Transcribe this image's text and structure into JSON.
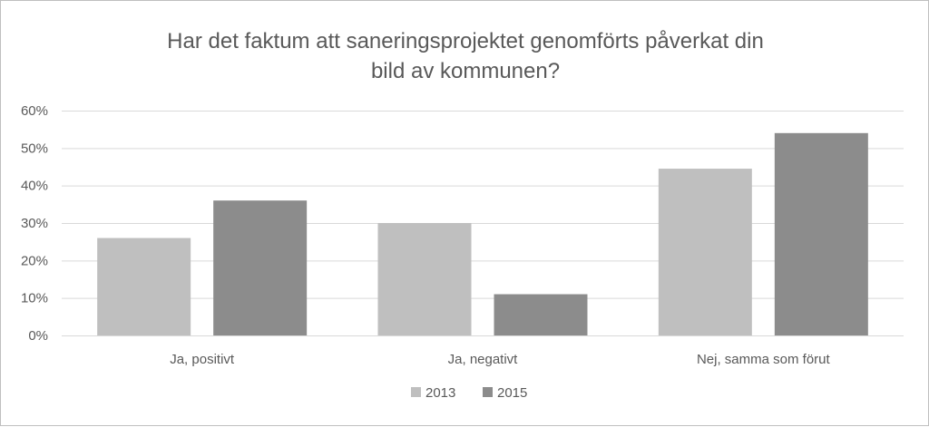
{
  "chart_data": {
    "type": "bar",
    "title_lines": [
      "Har det faktum att saneringsprojektet genomförts påverkat din",
      "bild av kommunen?"
    ],
    "categories": [
      "Ja, positivt",
      "Ja, negativt",
      "Nej, samma som förut"
    ],
    "series": [
      {
        "name": "2013",
        "values": [
          0.26,
          0.3,
          0.445
        ],
        "color": "#bfbfbf"
      },
      {
        "name": "2015",
        "values": [
          0.36,
          0.11,
          0.54
        ],
        "color": "#8c8c8c"
      }
    ],
    "ylim": [
      0,
      0.6
    ],
    "yticks": [
      0,
      0.1,
      0.2,
      0.3,
      0.4,
      0.5,
      0.6
    ],
    "ytick_labels": [
      "0%",
      "10%",
      "20%",
      "30%",
      "40%",
      "50%",
      "60%"
    ],
    "grid": true,
    "legend_position": "bottom",
    "axis_color": "#d9d9d9",
    "text_color": "#595959"
  }
}
